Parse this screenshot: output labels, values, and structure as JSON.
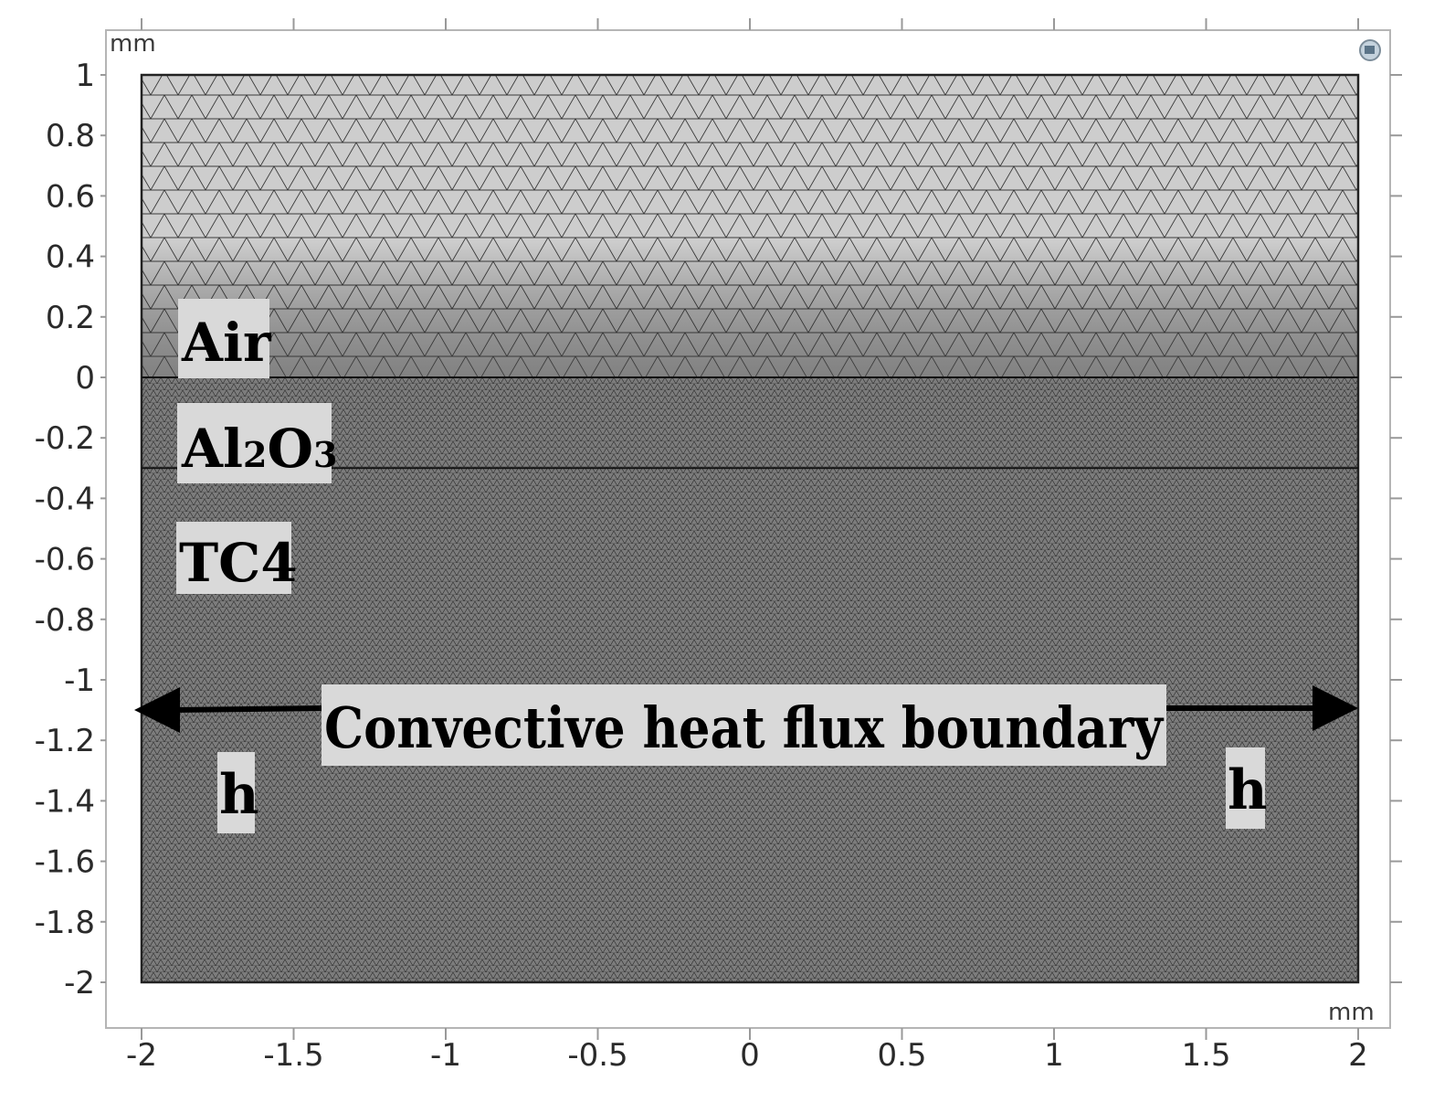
{
  "units": {
    "x": "mm",
    "y": "mm"
  },
  "axes": {
    "xlim": [
      -2,
      2
    ],
    "ylim": [
      -2,
      1
    ],
    "x_ticks": [
      "-2",
      "-1.5",
      "-1",
      "-0.5",
      "0",
      "0.5",
      "1",
      "1.5",
      "2"
    ],
    "y_ticks": [
      "1",
      "0.8",
      "0.6",
      "0.4",
      "0.2",
      "0",
      "-0.2",
      "-0.4",
      "-0.6",
      "-0.8",
      "-1",
      "-1.2",
      "-1.4",
      "-1.6",
      "-1.8",
      "-2"
    ]
  },
  "domain": {
    "x": [
      -2,
      2
    ],
    "y": [
      -2,
      1
    ]
  },
  "layers": [
    {
      "name": "Air",
      "y_range": [
        0,
        1
      ],
      "fill": "#cdcdcd"
    },
    {
      "name": "Al2O3",
      "y_range": [
        -0.3,
        0
      ],
      "fill": "#5f5f5f"
    },
    {
      "name": "TC4",
      "y_range": [
        -2,
        -0.3
      ],
      "fill": "#5c5c5c"
    }
  ],
  "labels": {
    "air": "Air",
    "al2o3_a": "Al",
    "al2o3_sub2": "2",
    "al2o3_o": "O",
    "al2o3_sub3": "3",
    "tc4": "TC4",
    "boundary": "Convective heat flux boundary",
    "h_left": "h",
    "h_right": "h"
  },
  "colors": {
    "label_bg": "#d9d9d9",
    "mesh_line": "#2b2b2b",
    "frame": "#b5b5b5"
  }
}
